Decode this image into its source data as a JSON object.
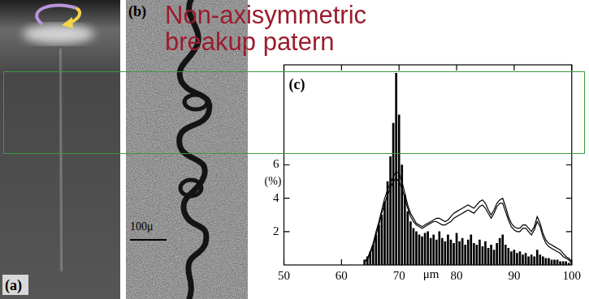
{
  "title": "Non-axisymmetric breakup patern",
  "panels": [
    {
      "label": "(a)"
    },
    {
      "label": "(b)",
      "scale_bar": "100μ"
    }
  ],
  "chart_data": {
    "type": "bar",
    "panel": "(c)",
    "xlabel": "μm",
    "ylabel": "(%)",
    "x": [
      64,
      64.5,
      65,
      65.5,
      66,
      66.5,
      67,
      67.5,
      68,
      68.5,
      69,
      69.5,
      70,
      70.5,
      71,
      71.5,
      72,
      72.5,
      73,
      73.5,
      74,
      74.5,
      75,
      75.5,
      76,
      76.5,
      77,
      77.5,
      78,
      78.5,
      79,
      79.5,
      80,
      80.5,
      81,
      81.5,
      82,
      82.5,
      83,
      83.5,
      84,
      84.5,
      85,
      85.5,
      86,
      86.5,
      87,
      87.5,
      88,
      88.5,
      89,
      89.5,
      90,
      90.5,
      91,
      91.5,
      92,
      92.5,
      93,
      93.5,
      94,
      94.5,
      95,
      95.5,
      96,
      96.5,
      97,
      97.5,
      98,
      98.5,
      99,
      99.5,
      100
    ],
    "series": [
      {
        "type": "bar",
        "color": "#000000",
        "values": [
          0.3,
          0.5,
          0.8,
          1.2,
          1.8,
          2.4,
          3.0,
          3.8,
          5.0,
          6.5,
          8.5,
          11.5,
          9.0,
          6.0,
          4.2,
          3.2,
          2.6,
          2.2,
          2.0,
          1.8,
          1.7,
          1.9,
          2.0,
          1.6,
          1.8,
          1.5,
          2.0,
          1.6,
          1.4,
          1.8,
          1.5,
          1.3,
          1.9,
          1.4,
          1.6,
          1.2,
          1.5,
          1.8,
          1.3,
          1.2,
          1.5,
          1.1,
          1.4,
          1.0,
          1.2,
          0.9,
          1.3,
          1.6,
          1.8,
          1.2,
          1.0,
          0.8,
          0.9,
          0.7,
          0.8,
          0.6,
          0.7,
          0.5,
          0.6,
          0.5,
          0.9,
          0.6,
          0.5,
          0.4,
          0.4,
          0.3,
          0.3,
          0.3,
          0.2,
          0.2,
          0.2,
          0.1,
          0.1
        ]
      },
      {
        "type": "line",
        "color": "#000000",
        "values": [
          0.2,
          0.4,
          0.8,
          1.3,
          2.0,
          2.6,
          3.3,
          4.0,
          4.5,
          4.9,
          5.3,
          5.6,
          5.5,
          5.0,
          4.3,
          3.6,
          3.1,
          2.8,
          2.5,
          2.4,
          2.3,
          2.4,
          2.5,
          2.6,
          2.7,
          2.8,
          2.8,
          2.7,
          2.6,
          2.7,
          2.9,
          3.1,
          3.2,
          3.3,
          3.4,
          3.5,
          3.6,
          3.5,
          3.4,
          3.6,
          3.8,
          3.9,
          3.7,
          3.3,
          3.0,
          3.3,
          3.7,
          3.9,
          4.0,
          3.5,
          2.9,
          2.5,
          2.3,
          2.2,
          2.2,
          2.4,
          2.4,
          2.2,
          2.0,
          2.3,
          2.9,
          2.5,
          1.9,
          1.5,
          1.3,
          1.2,
          1.1,
          1.0,
          0.9,
          0.7,
          0.5,
          0.4,
          0.2
        ]
      },
      {
        "type": "line",
        "color": "#000000",
        "values": [
          0.2,
          0.3,
          0.7,
          1.1,
          1.8,
          2.4,
          3.1,
          3.7,
          4.2,
          4.6,
          5.0,
          5.2,
          5.0,
          4.6,
          4.0,
          3.4,
          2.9,
          2.6,
          2.4,
          2.3,
          2.2,
          2.3,
          2.4,
          2.5,
          2.6,
          2.6,
          2.5,
          2.4,
          2.4,
          2.5,
          2.6,
          2.8,
          2.9,
          3.0,
          3.1,
          3.2,
          3.3,
          3.2,
          3.1,
          3.3,
          3.5,
          3.6,
          3.4,
          3.1,
          2.8,
          3.1,
          3.5,
          3.7,
          3.7,
          3.2,
          2.7,
          2.3,
          2.1,
          2.0,
          2.0,
          2.2,
          2.2,
          2.0,
          1.8,
          2.1,
          2.6,
          2.3,
          1.7,
          1.3,
          1.1,
          1.0,
          0.9,
          0.8,
          0.7,
          0.5,
          0.4,
          0.3,
          0.1
        ]
      }
    ],
    "xlim": [
      50,
      100
    ],
    "xticks": [
      50,
      60,
      70,
      80,
      90,
      100
    ],
    "ylim": [
      0,
      12
    ],
    "yticks": [
      2,
      4,
      6
    ],
    "grid": false
  }
}
